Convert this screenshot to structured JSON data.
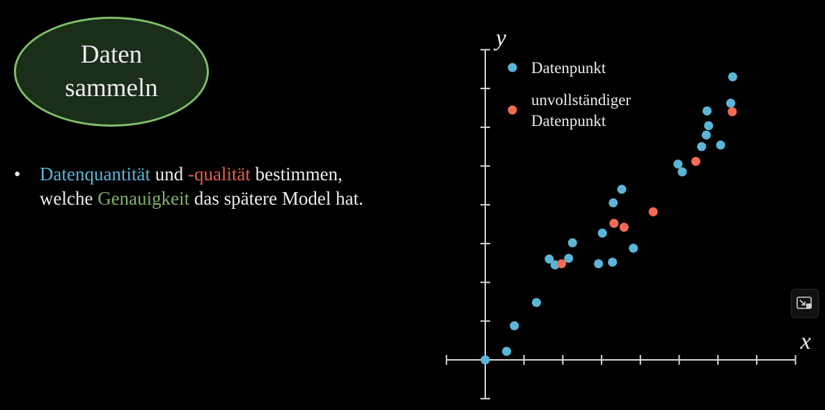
{
  "badge": {
    "line1": "Daten",
    "line2": "sammeln"
  },
  "bullet": {
    "marker": "•",
    "seg1": "Datenquantität",
    "seg2": " und ",
    "seg3": "-qualität",
    "seg4": " bestimmen,",
    "seg5": "welche ",
    "seg6": "Genauigkeit",
    "seg7": " das spätere Model hat."
  },
  "colors": {
    "complete": "#5ab6d6",
    "incomplete": "#f26b53",
    "accent": "#7ebf6a",
    "axis": "#d9d9d9"
  },
  "pip_button": {
    "icon": "picture-in-picture-icon"
  },
  "chart_data": {
    "type": "scatter",
    "xlabel": "x",
    "ylabel": "y",
    "xlim": [
      -1,
      8
    ],
    "ylim": [
      -1,
      8
    ],
    "grid": false,
    "legend_position": "top-left",
    "series": [
      {
        "name": "Datenpunkt",
        "color": "#5ab6d6",
        "points": [
          [
            0.0,
            0.0
          ],
          [
            0.55,
            0.22
          ],
          [
            0.75,
            0.88
          ],
          [
            1.32,
            1.48
          ],
          [
            1.65,
            2.6
          ],
          [
            1.8,
            2.45
          ],
          [
            2.15,
            2.62
          ],
          [
            2.25,
            3.02
          ],
          [
            2.92,
            2.48
          ],
          [
            3.02,
            3.27
          ],
          [
            3.28,
            2.52
          ],
          [
            3.3,
            4.05
          ],
          [
            3.52,
            4.4
          ],
          [
            3.82,
            2.88
          ],
          [
            4.97,
            5.05
          ],
          [
            5.08,
            4.85
          ],
          [
            5.58,
            5.5
          ],
          [
            5.7,
            5.8
          ],
          [
            5.76,
            6.04
          ],
          [
            5.72,
            6.42
          ],
          [
            6.07,
            5.54
          ],
          [
            6.33,
            6.62
          ],
          [
            6.38,
            7.3
          ]
        ]
      },
      {
        "name": "unvollständiger Datenpunkt",
        "color": "#f26b53",
        "points": [
          [
            1.97,
            2.48
          ],
          [
            3.32,
            3.52
          ],
          [
            3.58,
            3.42
          ],
          [
            4.33,
            3.82
          ],
          [
            5.43,
            5.12
          ],
          [
            6.37,
            6.4
          ]
        ]
      }
    ],
    "legend": [
      {
        "label_lines": [
          "Datenpunkt"
        ],
        "color": "#5ab6d6"
      },
      {
        "label_lines": [
          "unvollständiger",
          "Datenpunkt"
        ],
        "color": "#f26b53"
      }
    ]
  }
}
